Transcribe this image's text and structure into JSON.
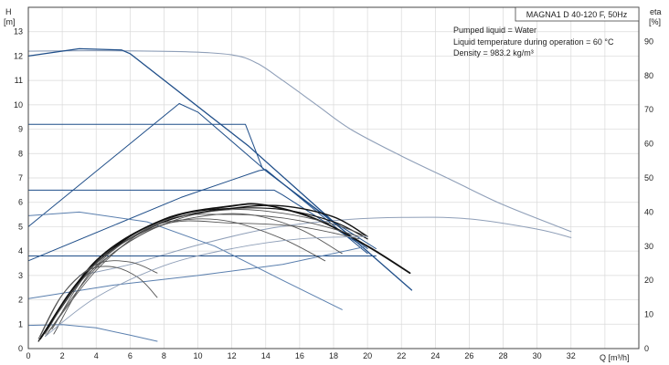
{
  "chart_data": {
    "type": "line",
    "title": "MAGNA1 D 40-120 F, 50Hz",
    "annotations": [
      "Pumped liquid = Water",
      "Liquid temperature during operation = 60 °C",
      "Density = 983.2 kg/m³"
    ],
    "y_left_label": [
      "H",
      "[m]"
    ],
    "y_right_label": [
      "eta",
      "[%]"
    ],
    "x_label": "Q [m³/h]",
    "xlim": [
      0,
      36
    ],
    "x_ticks": [
      "0",
      "2",
      "4",
      "6",
      "8",
      "10",
      "12",
      "14",
      "16",
      "18",
      "20",
      "22",
      "24",
      "26",
      "28",
      "30",
      "32"
    ],
    "ylim": [
      0,
      14
    ],
    "y_ticks": [
      "0",
      "1",
      "2",
      "3",
      "4",
      "5",
      "6",
      "7",
      "8",
      "9",
      "10",
      "11",
      "12",
      "13"
    ],
    "eta_lim": [
      0,
      100
    ],
    "eta_ticks": [
      "0",
      "10",
      "20",
      "30",
      "40",
      "50",
      "60",
      "70",
      "80",
      "90"
    ],
    "grid": true,
    "colors": {
      "dark": "#1f4e89",
      "mid": "#5a7fae",
      "light": "#8f9fb8",
      "black": "#111111",
      "grey": "#555555",
      "frame": "#444444",
      "grid": "#d9d9d9"
    },
    "series": [
      {
        "role": "h-max",
        "color": "light",
        "width": 1.1,
        "x": [
          0,
          4,
          9,
          12,
          13.5,
          15,
          17,
          19,
          22,
          25,
          28,
          32
        ],
        "y": [
          12.2,
          12.22,
          12.18,
          12.05,
          11.7,
          11.0,
          10.0,
          9.0,
          7.9,
          6.9,
          5.9,
          4.8
        ]
      },
      {
        "role": "eta-max",
        "color": "light",
        "width": 1.0,
        "x": [
          3,
          6,
          10,
          14,
          18,
          22,
          26,
          30,
          32
        ],
        "y": [
          3.0,
          3.45,
          4.25,
          4.9,
          5.25,
          5.38,
          5.32,
          4.9,
          4.55
        ]
      },
      {
        "role": "h-curve",
        "color": "dark",
        "width": 1.3,
        "x": [
          0,
          3,
          5.5,
          6,
          13,
          18,
          22.6
        ],
        "y": [
          12.0,
          12.3,
          12.25,
          12.1,
          8.3,
          5.2,
          2.4
        ]
      },
      {
        "role": "h-curve",
        "color": "dark",
        "width": 1.0,
        "x": [
          0,
          8.9,
          10,
          14,
          18,
          20.5
        ],
        "y": [
          5.0,
          10.05,
          9.7,
          7.3,
          5.2,
          4.1
        ]
      },
      {
        "role": "h-curve",
        "color": "dark",
        "width": 1.0,
        "x": [
          0,
          10,
          12.8,
          13.8,
          20
        ],
        "y": [
          9.2,
          9.2,
          9.2,
          7.4,
          4.1
        ]
      },
      {
        "role": "h-curve",
        "color": "dark",
        "width": 1.0,
        "x": [
          0,
          9,
          13.6,
          14,
          20
        ],
        "y": [
          3.6,
          6.2,
          7.3,
          7.35,
          3.9
        ]
      },
      {
        "role": "h-curve",
        "color": "dark",
        "width": 1.0,
        "x": [
          0,
          10,
          14.5,
          15,
          19.5
        ],
        "y": [
          6.5,
          6.5,
          6.5,
          6.3,
          4.3
        ]
      },
      {
        "role": "h-curve",
        "color": "dark",
        "width": 1.0,
        "x": [
          0,
          20.5
        ],
        "y": [
          3.8,
          3.8
        ]
      },
      {
        "role": "h-curve",
        "color": "mid",
        "width": 1.0,
        "x": [
          0,
          3,
          7,
          11,
          15,
          18.5
        ],
        "y": [
          5.45,
          5.6,
          5.2,
          4.2,
          2.8,
          1.6
        ]
      },
      {
        "role": "h-curve",
        "color": "mid",
        "width": 1.0,
        "x": [
          0,
          5,
          10,
          15,
          20
        ],
        "y": [
          2.05,
          2.6,
          3.0,
          3.45,
          4.2
        ]
      },
      {
        "role": "h-curve",
        "color": "mid",
        "width": 1.0,
        "x": [
          0,
          2,
          4,
          6,
          7.6
        ],
        "y": [
          0.95,
          0.98,
          0.85,
          0.55,
          0.3
        ]
      },
      {
        "role": "p1-heavy",
        "color": "black",
        "width": 1.8,
        "x": [
          0.7,
          4,
          8,
          12,
          14,
          17,
          20,
          22.5
        ],
        "y": [
          0.4,
          3.6,
          5.3,
          5.85,
          5.88,
          5.3,
          4.2,
          3.1
        ]
      },
      {
        "role": "p1-heavy",
        "color": "black",
        "width": 1.4,
        "x": [
          0.8,
          4,
          8,
          12,
          15,
          18,
          20
        ],
        "y": [
          0.5,
          3.5,
          5.2,
          5.75,
          5.85,
          5.4,
          4.6
        ]
      },
      {
        "role": "p1-heavy",
        "color": "black",
        "width": 1.2,
        "x": [
          0.6,
          3,
          6,
          9,
          12,
          15,
          18,
          20
        ],
        "y": [
          0.3,
          2.8,
          4.6,
          5.5,
          5.75,
          5.7,
          5.2,
          4.5
        ]
      },
      {
        "role": "p1",
        "color": "grey",
        "width": 0.9,
        "x": [
          1,
          3,
          6,
          9,
          12,
          15,
          18,
          20
        ],
        "y": [
          0.6,
          2.7,
          4.4,
          5.35,
          5.7,
          5.55,
          5.1,
          4.6
        ]
      },
      {
        "role": "p1",
        "color": "grey",
        "width": 0.9,
        "x": [
          1.2,
          4,
          7,
          10,
          13,
          16,
          18.5
        ],
        "y": [
          0.7,
          3.3,
          4.8,
          5.4,
          5.5,
          4.9,
          3.9
        ]
      },
      {
        "role": "p1",
        "color": "grey",
        "width": 0.9,
        "x": [
          1,
          4,
          7,
          9.5,
          12,
          15,
          17.5
        ],
        "y": [
          0.5,
          3.2,
          4.9,
          5.3,
          5.2,
          4.5,
          3.6
        ]
      },
      {
        "role": "p1",
        "color": "grey",
        "width": 0.9,
        "x": [
          1.5,
          4,
          8,
          12,
          16,
          19.5
        ],
        "y": [
          0.6,
          3.4,
          5.25,
          5.5,
          5.25,
          4.6
        ]
      },
      {
        "role": "p1",
        "color": "grey",
        "width": 0.9,
        "x": [
          0.7,
          2,
          3.5,
          5,
          6.5,
          7.6
        ],
        "y": [
          0.5,
          2.2,
          3.2,
          3.35,
          2.9,
          2.1
        ]
      },
      {
        "role": "p1",
        "color": "grey",
        "width": 0.9,
        "x": [
          0.6,
          2,
          4,
          6,
          7.6
        ],
        "y": [
          0.4,
          2.2,
          3.45,
          3.55,
          3.1
        ]
      },
      {
        "role": "p1",
        "color": "grey",
        "width": 0.9,
        "x": [
          1.4,
          4,
          8,
          12,
          16,
          19.5
        ],
        "y": [
          0.8,
          3.5,
          5.1,
          5.15,
          5.0,
          4.5
        ]
      },
      {
        "role": "p1-light",
        "color": "light",
        "width": 0.9,
        "x": [
          1,
          4,
          8,
          12,
          16,
          20
        ],
        "y": [
          0.5,
          2.1,
          3.4,
          4.1,
          4.5,
          4.6
        ]
      }
    ]
  }
}
